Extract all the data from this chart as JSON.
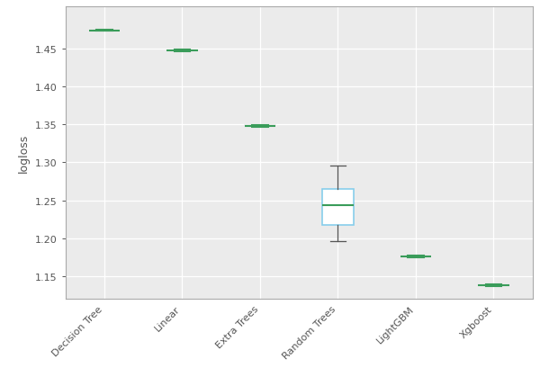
{
  "title": "",
  "ylabel": "logloss",
  "xlabel": "",
  "categories": [
    "Decision Tree",
    "Linear",
    "Extra Trees",
    "Random Trees",
    "LightGBM",
    "Xgboost"
  ],
  "box_data": {
    "Decision Tree": {
      "whislo": 1.473,
      "q1": 1.4735,
      "med": 1.474,
      "q3": 1.4745,
      "whishi": 1.475
    },
    "Linear": {
      "whislo": 1.446,
      "q1": 1.4465,
      "med": 1.447,
      "q3": 1.4475,
      "whishi": 1.448
    },
    "Extra Trees": {
      "whislo": 1.347,
      "q1": 1.3475,
      "med": 1.348,
      "q3": 1.3485,
      "whishi": 1.349
    },
    "Random Trees": {
      "whislo": 1.196,
      "q1": 1.218,
      "med": 1.244,
      "q3": 1.265,
      "whishi": 1.296
    },
    "LightGBM": {
      "whislo": 1.175,
      "q1": 1.1755,
      "med": 1.176,
      "q3": 1.1765,
      "whishi": 1.177
    },
    "Xgboost": {
      "whislo": 1.137,
      "q1": 1.1375,
      "med": 1.138,
      "q3": 1.1385,
      "whishi": 1.139
    }
  },
  "box_color": "#87ceeb",
  "median_color": "#3a9c5a",
  "whisker_color": "#555555",
  "cap_color": "#555555",
  "ylim": [
    1.12,
    1.505
  ],
  "yticks": [
    1.15,
    1.2,
    1.25,
    1.3,
    1.35,
    1.4,
    1.45
  ],
  "plot_bg": "#ebebeb",
  "figure_bg": "#ffffff",
  "outer_border_color": "#bbbbbb",
  "grid_color": "#ffffff",
  "spine_color": "#aaaaaa",
  "tick_label_color": "#555555",
  "axis_label_color": "#555555"
}
